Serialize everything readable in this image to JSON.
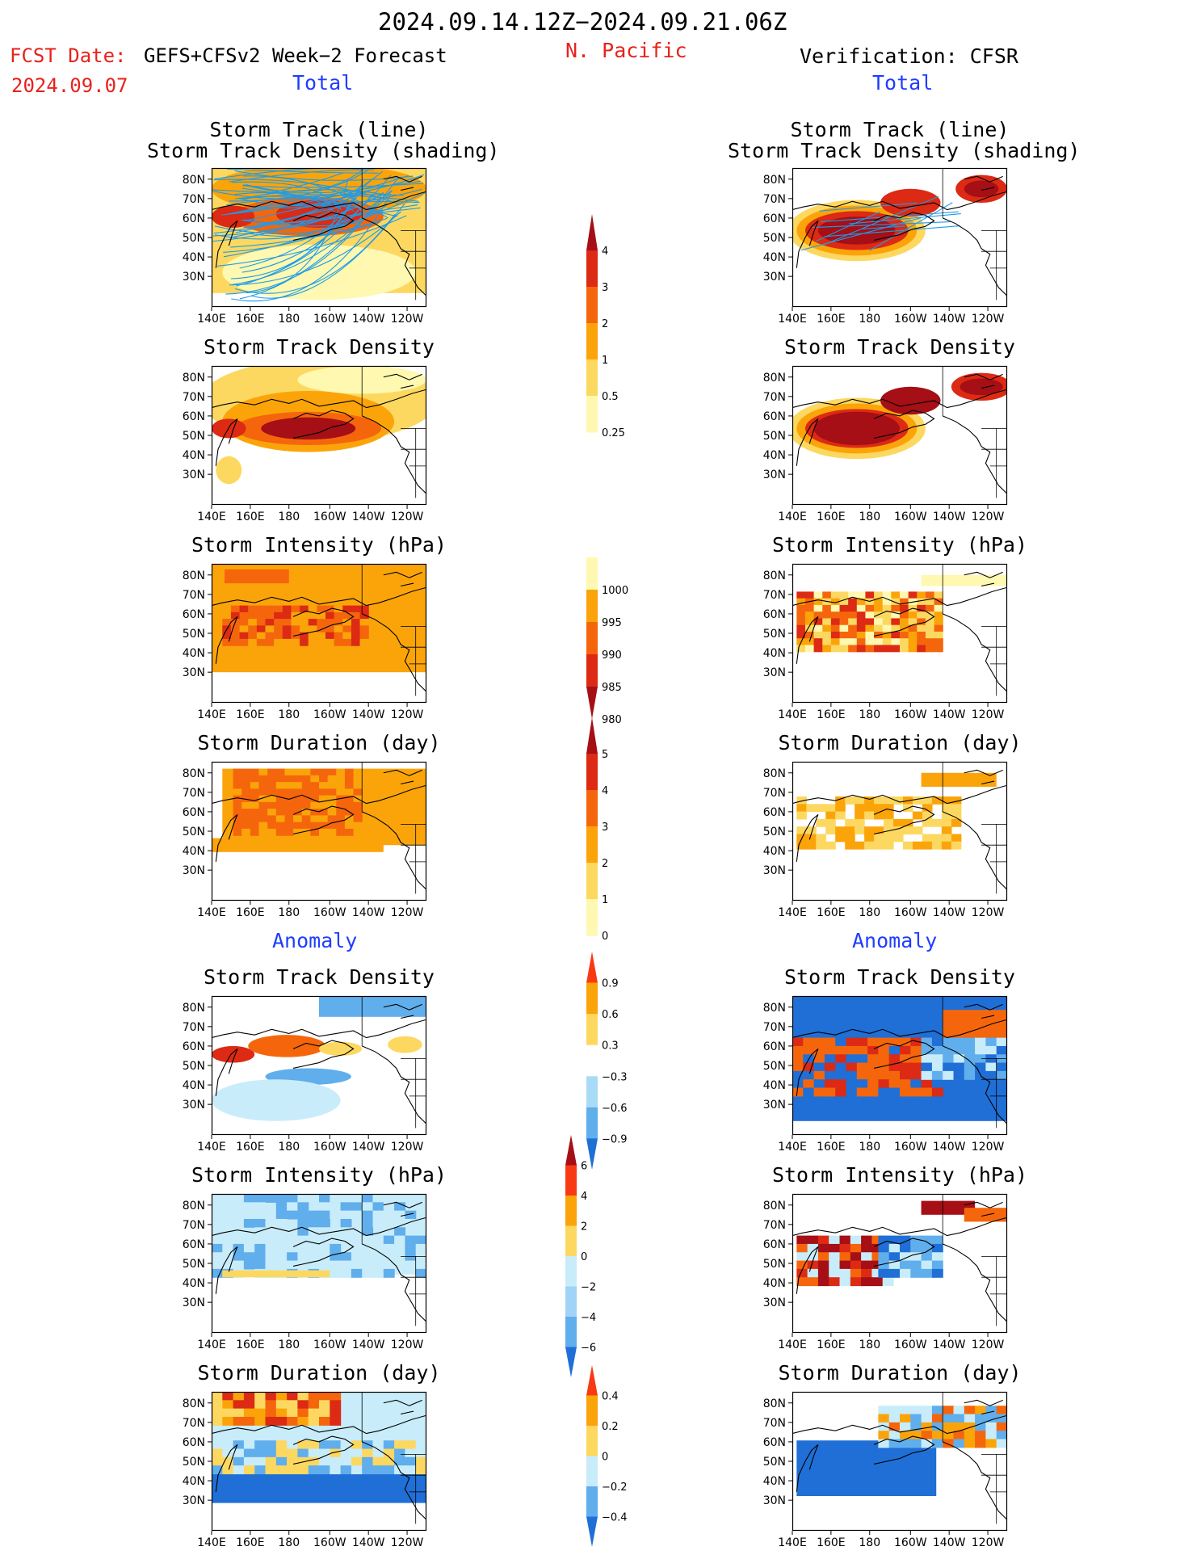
{
  "header": {
    "period": "2024.09.14.12Z−2024.09.21.06Z",
    "fcst_label": "FCST Date:",
    "fcst_model": "GEFS+CFSv2 Week−2 Forecast",
    "fcst_date": "2024.09.07",
    "region": "N. Pacific",
    "verification": "Verification: CFSR",
    "total_left": "Total",
    "total_right": "Total",
    "anomaly_left": "Anomaly",
    "anomaly_right": "Anomaly"
  },
  "axes": {
    "lat_ticks": [
      "80N",
      "70N",
      "60N",
      "50N",
      "40N",
      "30N"
    ],
    "lon_ticks": [
      "140E",
      "160E",
      "180",
      "160W",
      "140W",
      "120W"
    ]
  },
  "panels": {
    "left": [
      {
        "title_lines": [
          "Storm Track (line)",
          "Storm Track Density (shading)"
        ]
      },
      {
        "title_lines": [
          "Storm Track Density"
        ]
      },
      {
        "title_lines": [
          "Storm Intensity (hPa)"
        ]
      },
      {
        "title_lines": [
          "Storm Duration (day)"
        ]
      },
      {
        "title_lines": [
          "Storm Track Density"
        ]
      },
      {
        "title_lines": [
          "Storm Intensity (hPa)"
        ]
      },
      {
        "title_lines": [
          "Storm Duration (day)"
        ]
      }
    ],
    "right": [
      {
        "title_lines": [
          "Storm Track (line)",
          "Storm Track Density (shading)"
        ]
      },
      {
        "title_lines": [
          "Storm Track Density"
        ]
      },
      {
        "title_lines": [
          "Storm Intensity (hPa)"
        ]
      },
      {
        "title_lines": [
          "Storm Duration (day)"
        ]
      },
      {
        "title_lines": [
          "Storm Track Density"
        ]
      },
      {
        "title_lines": [
          "Storm Intensity (hPa)"
        ]
      },
      {
        "title_lines": [
          "Storm Duration (day)"
        ]
      }
    ]
  },
  "colorbars": [
    {
      "labels": [
        "4",
        "3",
        "2",
        "1",
        "0.5",
        "0.25"
      ],
      "colors": [
        "#a50f15",
        "#dc2a14",
        "#f5660c",
        "#fba40a",
        "#fdd860",
        "#fef8b0"
      ],
      "arrow_top": true,
      "arrow_bottom": false
    },
    {
      "labels": [
        "1000",
        "995",
        "990",
        "985",
        "980"
      ],
      "colors": [
        "#fef8b0",
        "#fba40a",
        "#f5660c",
        "#dc2a14",
        "#a50f15"
      ],
      "arrow_top": false,
      "arrow_bottom": true
    },
    {
      "labels": [
        "5",
        "4",
        "3",
        "2",
        "1",
        "0"
      ],
      "colors": [
        "#a50f15",
        "#dc2a14",
        "#f5660c",
        "#fba40a",
        "#fdd860",
        "#fef8b0"
      ],
      "arrow_top": true,
      "arrow_bottom": false
    },
    {
      "labels": [
        "0.9",
        "0.6",
        "0.3",
        "−0.3",
        "−0.6",
        "−0.9"
      ],
      "colors": [
        "#f83a14",
        "#fba40a",
        "#fdd860",
        "#ffffff",
        "#a8dcf6",
        "#60aeec",
        "#1f6fd6"
      ],
      "arrow_top": true,
      "arrow_bottom": true
    },
    {
      "labels": [
        "6",
        "4",
        "2",
        "0",
        "−2",
        "−4",
        "−6"
      ],
      "colors": [
        "#a50f15",
        "#f83a14",
        "#fba40a",
        "#fdd860",
        "#c8ecfa",
        "#a0d4f6",
        "#60aeec",
        "#1f6fd6"
      ],
      "arrow_top": true,
      "arrow_bottom": true
    },
    {
      "labels": [
        "0.4",
        "0.2",
        "0",
        "−0.2",
        "−0.4"
      ],
      "colors": [
        "#f83a14",
        "#fba40a",
        "#fdd860",
        "#c8ecfa",
        "#60aeec",
        "#1f6fd6"
      ],
      "arrow_top": true,
      "arrow_bottom": true
    }
  ],
  "chart_data": {
    "type": "heatmap",
    "title": "2024.09.14.12Z−2024.09.21.06Z",
    "region": "N. Pacific",
    "x_ticks": [
      "140E",
      "160E",
      "180",
      "160W",
      "140W",
      "120W"
    ],
    "y_ticks": [
      "30N",
      "40N",
      "50N",
      "60N",
      "70N",
      "80N"
    ],
    "colors": {
      "darkred": "#a50f15",
      "red": "#dc2a14",
      "orange_red": "#f5660c",
      "orange": "#fba40a",
      "light_orange": "#fdd860",
      "pale_yellow": "#fef8b0",
      "light_blue": "#c8ecfa",
      "mid_blue": "#60aeec",
      "dark_blue": "#1f6fd6",
      "track_line": "#1e9be8"
    }
  }
}
